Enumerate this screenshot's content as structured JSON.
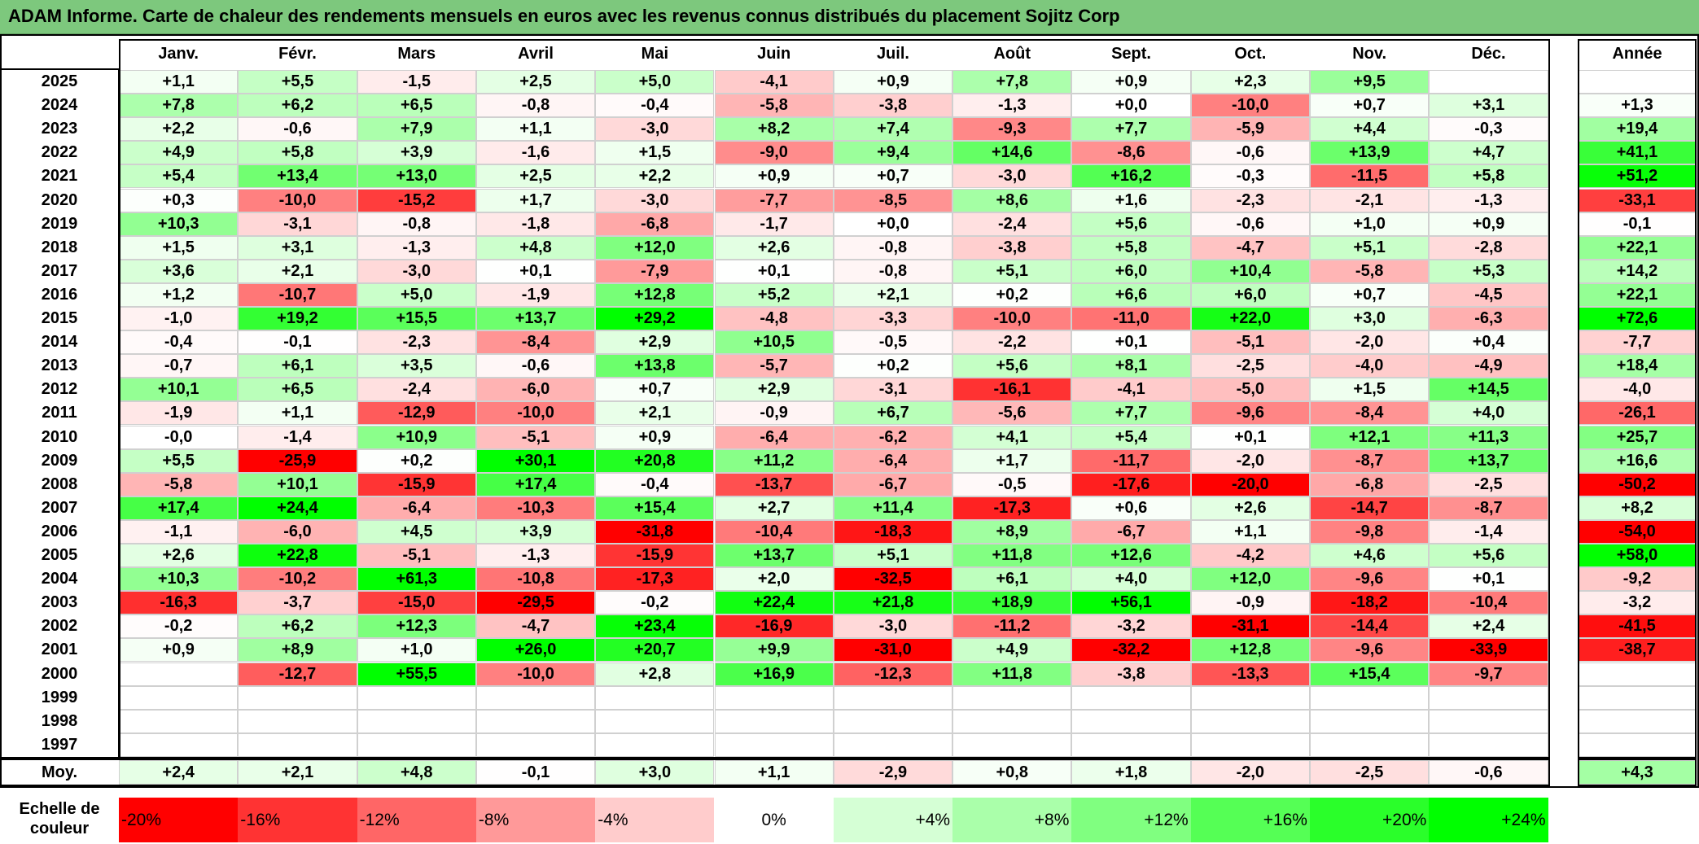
{
  "title": "ADAM Informe. Carte de chaleur des rendements mensuels en euros avec les revenus connus distribués du placement Sojitz Corp",
  "chart_data": {
    "type": "heatmap",
    "title": "ADAM Informe. Carte de chaleur des rendements mensuels en euros avec les revenus connus distribués du placement Sojitz Corp",
    "columns": [
      "Janv.",
      "Févr.",
      "Mars",
      "Avril",
      "Mai",
      "Juin",
      "Juil.",
      "Août",
      "Sept.",
      "Oct.",
      "Nov.",
      "Déc."
    ],
    "year_header": "Année",
    "rows": [
      {
        "year": "2025",
        "months": [
          "+1,1",
          "+5,5",
          "-1,5",
          "+2,5",
          "+5,0",
          "-4,1",
          "+0,9",
          "+7,8",
          "+0,9",
          "+2,3",
          "+9,5",
          ""
        ],
        "annual": ""
      },
      {
        "year": "2024",
        "months": [
          "+7,8",
          "+6,2",
          "+6,5",
          "-0,8",
          "-0,4",
          "-5,8",
          "-3,8",
          "-1,3",
          "+0,0",
          "-10,0",
          "+0,7",
          "+3,1"
        ],
        "annual": "+1,3"
      },
      {
        "year": "2023",
        "months": [
          "+2,2",
          "-0,6",
          "+7,9",
          "+1,1",
          "-3,0",
          "+8,2",
          "+7,4",
          "-9,3",
          "+7,7",
          "-5,9",
          "+4,4",
          "-0,3"
        ],
        "annual": "+19,4"
      },
      {
        "year": "2022",
        "months": [
          "+4,9",
          "+5,8",
          "+3,9",
          "-1,6",
          "+1,5",
          "-9,0",
          "+9,4",
          "+14,6",
          "-8,6",
          "-0,6",
          "+13,9",
          "+4,7"
        ],
        "annual": "+41,1"
      },
      {
        "year": "2021",
        "months": [
          "+5,4",
          "+13,4",
          "+13,0",
          "+2,5",
          "+2,2",
          "+0,9",
          "+0,7",
          "-3,0",
          "+16,2",
          "-0,3",
          "-11,5",
          "+5,8"
        ],
        "annual": "+51,2"
      },
      {
        "year": "2020",
        "months": [
          "+0,3",
          "-10,0",
          "-15,2",
          "+1,7",
          "-3,0",
          "-7,7",
          "-8,5",
          "+8,6",
          "+1,6",
          "-2,3",
          "-2,1",
          "-1,3"
        ],
        "annual": "-33,1"
      },
      {
        "year": "2019",
        "months": [
          "+10,3",
          "-3,1",
          "-0,8",
          "-1,8",
          "-6,8",
          "-1,7",
          "+0,0",
          "-2,4",
          "+5,6",
          "-0,6",
          "+1,0",
          "+0,9"
        ],
        "annual": "-0,1"
      },
      {
        "year": "2018",
        "months": [
          "+1,5",
          "+3,1",
          "-1,3",
          "+4,8",
          "+12,0",
          "+2,6",
          "-0,8",
          "-3,8",
          "+5,8",
          "-4,7",
          "+5,1",
          "-2,8"
        ],
        "annual": "+22,1"
      },
      {
        "year": "2017",
        "months": [
          "+3,6",
          "+2,1",
          "-3,0",
          "+0,1",
          "-7,9",
          "+0,1",
          "-0,8",
          "+5,1",
          "+6,0",
          "+10,4",
          "-5,8",
          "+5,3"
        ],
        "annual": "+14,2"
      },
      {
        "year": "2016",
        "months": [
          "+1,2",
          "-10,7",
          "+5,0",
          "-1,9",
          "+12,8",
          "+5,2",
          "+2,1",
          "+0,2",
          "+6,6",
          "+6,0",
          "+0,7",
          "-4,5"
        ],
        "annual": "+22,1"
      },
      {
        "year": "2015",
        "months": [
          "-1,0",
          "+19,2",
          "+15,5",
          "+13,7",
          "+29,2",
          "-4,8",
          "-3,3",
          "-10,0",
          "-11,0",
          "+22,0",
          "+3,0",
          "-6,3"
        ],
        "annual": "+72,6"
      },
      {
        "year": "2014",
        "months": [
          "-0,4",
          "-0,1",
          "-2,3",
          "-8,4",
          "+2,9",
          "+10,5",
          "-0,5",
          "-2,2",
          "+0,1",
          "-5,1",
          "-2,0",
          "+0,4"
        ],
        "annual": "-7,7"
      },
      {
        "year": "2013",
        "months": [
          "-0,7",
          "+6,1",
          "+3,5",
          "-0,6",
          "+13,8",
          "-5,7",
          "+0,2",
          "+5,6",
          "+8,1",
          "-2,5",
          "-4,0",
          "-4,9"
        ],
        "annual": "+18,4"
      },
      {
        "year": "2012",
        "months": [
          "+10,1",
          "+6,5",
          "-2,4",
          "-6,0",
          "+0,7",
          "+2,9",
          "-3,1",
          "-16,1",
          "-4,1",
          "-5,0",
          "+1,5",
          "+14,5"
        ],
        "annual": "-4,0"
      },
      {
        "year": "2011",
        "months": [
          "-1,9",
          "+1,1",
          "-12,9",
          "-10,0",
          "+2,1",
          "-0,9",
          "+6,7",
          "-5,6",
          "+7,7",
          "-9,6",
          "-8,4",
          "+4,0"
        ],
        "annual": "-26,1"
      },
      {
        "year": "2010",
        "months": [
          "-0,0",
          "-1,4",
          "+10,9",
          "-5,1",
          "+0,9",
          "-6,4",
          "-6,2",
          "+4,1",
          "+5,4",
          "+0,1",
          "+12,1",
          "+11,3"
        ],
        "annual": "+25,7"
      },
      {
        "year": "2009",
        "months": [
          "+5,5",
          "-25,9",
          "+0,2",
          "+30,1",
          "+20,8",
          "+11,2",
          "-6,4",
          "+1,7",
          "-11,7",
          "-2,0",
          "-8,7",
          "+13,7"
        ],
        "annual": "+16,6"
      },
      {
        "year": "2008",
        "months": [
          "-5,8",
          "+10,1",
          "-15,9",
          "+17,4",
          "-0,4",
          "-13,7",
          "-6,7",
          "-0,5",
          "-17,6",
          "-20,0",
          "-6,8",
          "-2,5"
        ],
        "annual": "-50,2"
      },
      {
        "year": "2007",
        "months": [
          "+17,4",
          "+24,4",
          "-6,4",
          "-10,3",
          "+15,4",
          "+2,7",
          "+11,4",
          "-17,3",
          "+0,6",
          "+2,6",
          "-14,7",
          "-8,7"
        ],
        "annual": "+8,2"
      },
      {
        "year": "2006",
        "months": [
          "-1,1",
          "-6,0",
          "+4,5",
          "+3,9",
          "-31,8",
          "-10,4",
          "-18,3",
          "+8,9",
          "-6,7",
          "+1,1",
          "-9,8",
          "-1,4"
        ],
        "annual": "-54,0"
      },
      {
        "year": "2005",
        "months": [
          "+2,6",
          "+22,8",
          "-5,1",
          "-1,3",
          "-15,9",
          "+13,7",
          "+5,1",
          "+11,8",
          "+12,6",
          "-4,2",
          "+4,6",
          "+5,6"
        ],
        "annual": "+58,0"
      },
      {
        "year": "2004",
        "months": [
          "+10,3",
          "-10,2",
          "+61,3",
          "-10,8",
          "-17,3",
          "+2,0",
          "-32,5",
          "+6,1",
          "+4,0",
          "+12,0",
          "-9,6",
          "+0,1"
        ],
        "annual": "-9,2"
      },
      {
        "year": "2003",
        "months": [
          "-16,3",
          "-3,7",
          "-15,0",
          "-29,5",
          "-0,2",
          "+22,4",
          "+21,8",
          "+18,9",
          "+56,1",
          "-0,9",
          "-18,2",
          "-10,4"
        ],
        "annual": "-3,2"
      },
      {
        "year": "2002",
        "months": [
          "-0,2",
          "+6,2",
          "+12,3",
          "-4,7",
          "+23,4",
          "-16,9",
          "-3,0",
          "-11,2",
          "-3,2",
          "-31,1",
          "-14,4",
          "+2,4"
        ],
        "annual": "-41,5"
      },
      {
        "year": "2001",
        "months": [
          "+0,9",
          "+8,9",
          "+1,0",
          "+26,0",
          "+20,7",
          "+9,9",
          "-31,0",
          "+4,9",
          "-32,2",
          "+12,8",
          "-9,6",
          "-33,9"
        ],
        "annual": "-38,7"
      },
      {
        "year": "2000",
        "months": [
          "",
          "-12,7",
          "+55,5",
          "-10,0",
          "+2,8",
          "+16,9",
          "-12,3",
          "+11,8",
          "-3,8",
          "-13,3",
          "+15,4",
          "-9,7"
        ],
        "annual": ""
      },
      {
        "year": "1999",
        "months": [
          "",
          "",
          "",
          "",
          "",
          "",
          "",
          "",
          "",
          "",
          "",
          ""
        ],
        "annual": ""
      },
      {
        "year": "1998",
        "months": [
          "",
          "",
          "",
          "",
          "",
          "",
          "",
          "",
          "",
          "",
          "",
          ""
        ],
        "annual": ""
      },
      {
        "year": "1997",
        "months": [
          "",
          "",
          "",
          "",
          "",
          "",
          "",
          "",
          "",
          "",
          "",
          ""
        ],
        "annual": ""
      }
    ],
    "average": {
      "label": "Moy.",
      "months": [
        "+2,4",
        "+2,1",
        "+4,8",
        "-0,1",
        "+3,0",
        "+1,1",
        "-2,9",
        "+0,8",
        "+1,8",
        "-2,0",
        "-2,5",
        "-0,6"
      ],
      "annual": "+4,3"
    },
    "color_scale": {
      "label": "Echelle de couleur",
      "stops": [
        {
          "label": "-20%",
          "value": -20,
          "color": "#ff0000"
        },
        {
          "label": "-16%",
          "value": -16,
          "color": "#ff3333"
        },
        {
          "label": "-12%",
          "value": -12,
          "color": "#ff6666"
        },
        {
          "label": "-8%",
          "value": -8,
          "color": "#ff9999"
        },
        {
          "label": "-4%",
          "value": -4,
          "color": "#ffcccc"
        },
        {
          "label": "0%",
          "value": 0,
          "color": "#ffffff"
        },
        {
          "label": "+4%",
          "value": 4,
          "color": "#d5ffd5"
        },
        {
          "label": "+8%",
          "value": 8,
          "color": "#aaffaa"
        },
        {
          "label": "+12%",
          "value": 12,
          "color": "#80ff80"
        },
        {
          "label": "+16%",
          "value": 16,
          "color": "#55ff55"
        },
        {
          "label": "+20%",
          "value": 20,
          "color": "#2aff2a"
        },
        {
          "label": "+24%",
          "value": 24,
          "color": "#00ff00"
        }
      ]
    }
  }
}
